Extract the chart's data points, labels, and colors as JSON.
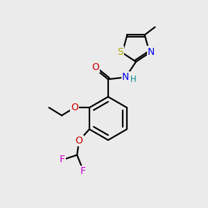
{
  "background_color": "#ebebeb",
  "line_color": "#000000",
  "bond_width": 1.6,
  "atom_colors": {
    "O": "#cc0000",
    "N": "#0000ee",
    "S": "#aaaa00",
    "F": "#cc00cc",
    "H": "#008888"
  },
  "font_size_atom": 10,
  "font_size_small": 8.5
}
